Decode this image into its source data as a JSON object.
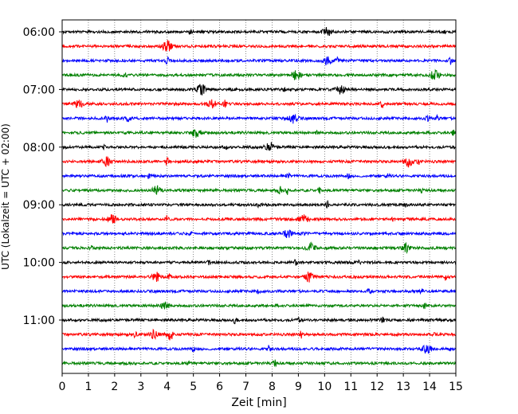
{
  "chart_data": {
    "type": "line",
    "title": "",
    "xlabel": "Zeit  [min]",
    "ylabel": "UTC (Lokalzeit = UTC + 02:00)",
    "xlim": [
      0,
      15
    ],
    "x_ticks": [
      0,
      1,
      2,
      3,
      4,
      5,
      6,
      7,
      8,
      9,
      10,
      11,
      12,
      13,
      14,
      15
    ],
    "x_tick_labels": [
      "0",
      "1",
      "2",
      "3",
      "4",
      "5",
      "6",
      "7",
      "8",
      "9",
      "10",
      "11",
      "12",
      "13",
      "14",
      "15"
    ],
    "y_tick_labels": [
      "06:00",
      "07:00",
      "08:00",
      "09:00",
      "10:00",
      "11:00"
    ],
    "grid": "vertical dotted",
    "trace_interval_minutes": 15,
    "first_trace": "06:00",
    "trace_count": 24,
    "colors": [
      "#000000",
      "#ff0000",
      "#0000ff",
      "#008000"
    ],
    "traces": [
      {
        "start": "06:00",
        "events": [
          [
            3.3,
            5
          ],
          [
            4.9,
            5
          ],
          [
            10.1,
            10
          ],
          [
            14.6,
            4
          ]
        ]
      },
      {
        "start": "06:15",
        "events": [
          [
            4.0,
            14
          ]
        ]
      },
      {
        "start": "06:30",
        "events": [
          [
            4.0,
            9
          ],
          [
            10.1,
            10
          ],
          [
            10.5,
            6
          ],
          [
            14.8,
            8
          ]
        ]
      },
      {
        "start": "06:45",
        "events": [
          [
            2.4,
            4
          ],
          [
            8.9,
            12
          ],
          [
            14.2,
            13
          ]
        ]
      },
      {
        "start": "07:00",
        "events": [
          [
            5.3,
            12
          ],
          [
            6.5,
            4
          ],
          [
            8.5,
            6
          ],
          [
            10.6,
            10
          ]
        ]
      },
      {
        "start": "07:15",
        "events": [
          [
            0.6,
            11
          ],
          [
            5.7,
            10
          ],
          [
            6.2,
            9
          ],
          [
            12.2,
            9
          ]
        ]
      },
      {
        "start": "07:30",
        "events": [
          [
            1.7,
            9
          ],
          [
            2.5,
            9
          ],
          [
            8.8,
            11
          ],
          [
            13.9,
            9
          ],
          [
            14.3,
            8
          ]
        ]
      },
      {
        "start": "07:45",
        "events": [
          [
            5.1,
            12
          ],
          [
            9.7,
            5
          ],
          [
            14.9,
            6
          ]
        ]
      },
      {
        "start": "08:00",
        "events": [
          [
            1.6,
            4
          ],
          [
            6.2,
            5
          ],
          [
            7.9,
            12
          ]
        ]
      },
      {
        "start": "08:15",
        "events": [
          [
            1.7,
            10
          ],
          [
            4.0,
            9
          ],
          [
            13.2,
            11
          ],
          [
            13.6,
            9
          ]
        ]
      },
      {
        "start": "08:30",
        "events": [
          [
            3.3,
            5
          ],
          [
            8.6,
            8
          ],
          [
            10.9,
            9
          ],
          [
            12.4,
            4
          ]
        ]
      },
      {
        "start": "08:45",
        "events": [
          [
            3.6,
            10
          ],
          [
            8.3,
            9
          ],
          [
            8.6,
            9
          ],
          [
            9.8,
            8
          ],
          [
            13.7,
            4
          ]
        ]
      },
      {
        "start": "09:00",
        "events": [
          [
            7.5,
            7
          ],
          [
            10.1,
            9
          ],
          [
            13.1,
            4
          ]
        ]
      },
      {
        "start": "09:15",
        "events": [
          [
            1.9,
            11
          ],
          [
            4.0,
            8
          ],
          [
            8.4,
            9
          ],
          [
            9.2,
            10
          ],
          [
            12.6,
            4
          ]
        ]
      },
      {
        "start": "09:30",
        "events": [
          [
            4.9,
            4
          ],
          [
            8.6,
            10
          ],
          [
            9.2,
            5
          ]
        ]
      },
      {
        "start": "09:45",
        "events": [
          [
            1.1,
            8
          ],
          [
            9.5,
            10
          ],
          [
            13.1,
            10
          ]
        ]
      },
      {
        "start": "10:00",
        "events": [
          [
            5.6,
            5
          ],
          [
            8.9,
            6
          ],
          [
            11.3,
            9
          ]
        ]
      },
      {
        "start": "10:15",
        "events": [
          [
            3.6,
            10
          ],
          [
            4.1,
            7
          ],
          [
            9.4,
            11
          ],
          [
            14.6,
            9
          ]
        ]
      },
      {
        "start": "10:30",
        "events": [
          [
            7.5,
            7
          ],
          [
            11.7,
            5
          ],
          [
            13.7,
            7
          ]
        ]
      },
      {
        "start": "10:45",
        "events": [
          [
            3.9,
            10
          ],
          [
            13.8,
            6
          ]
        ]
      },
      {
        "start": "11:00",
        "events": [
          [
            6.6,
            9
          ],
          [
            9.0,
            6
          ],
          [
            12.2,
            6
          ]
        ]
      },
      {
        "start": "11:15",
        "events": [
          [
            2.8,
            9
          ],
          [
            3.5,
            11
          ],
          [
            4.1,
            12
          ],
          [
            9.1,
            8
          ],
          [
            14.2,
            9
          ]
        ]
      },
      {
        "start": "11:30",
        "events": [
          [
            5.0,
            8
          ],
          [
            7.9,
            9
          ],
          [
            13.9,
            10
          ],
          [
            14.8,
            5
          ]
        ]
      },
      {
        "start": "11:45",
        "events": [
          [
            4.8,
            4
          ],
          [
            8.1,
            9
          ]
        ]
      }
    ]
  }
}
